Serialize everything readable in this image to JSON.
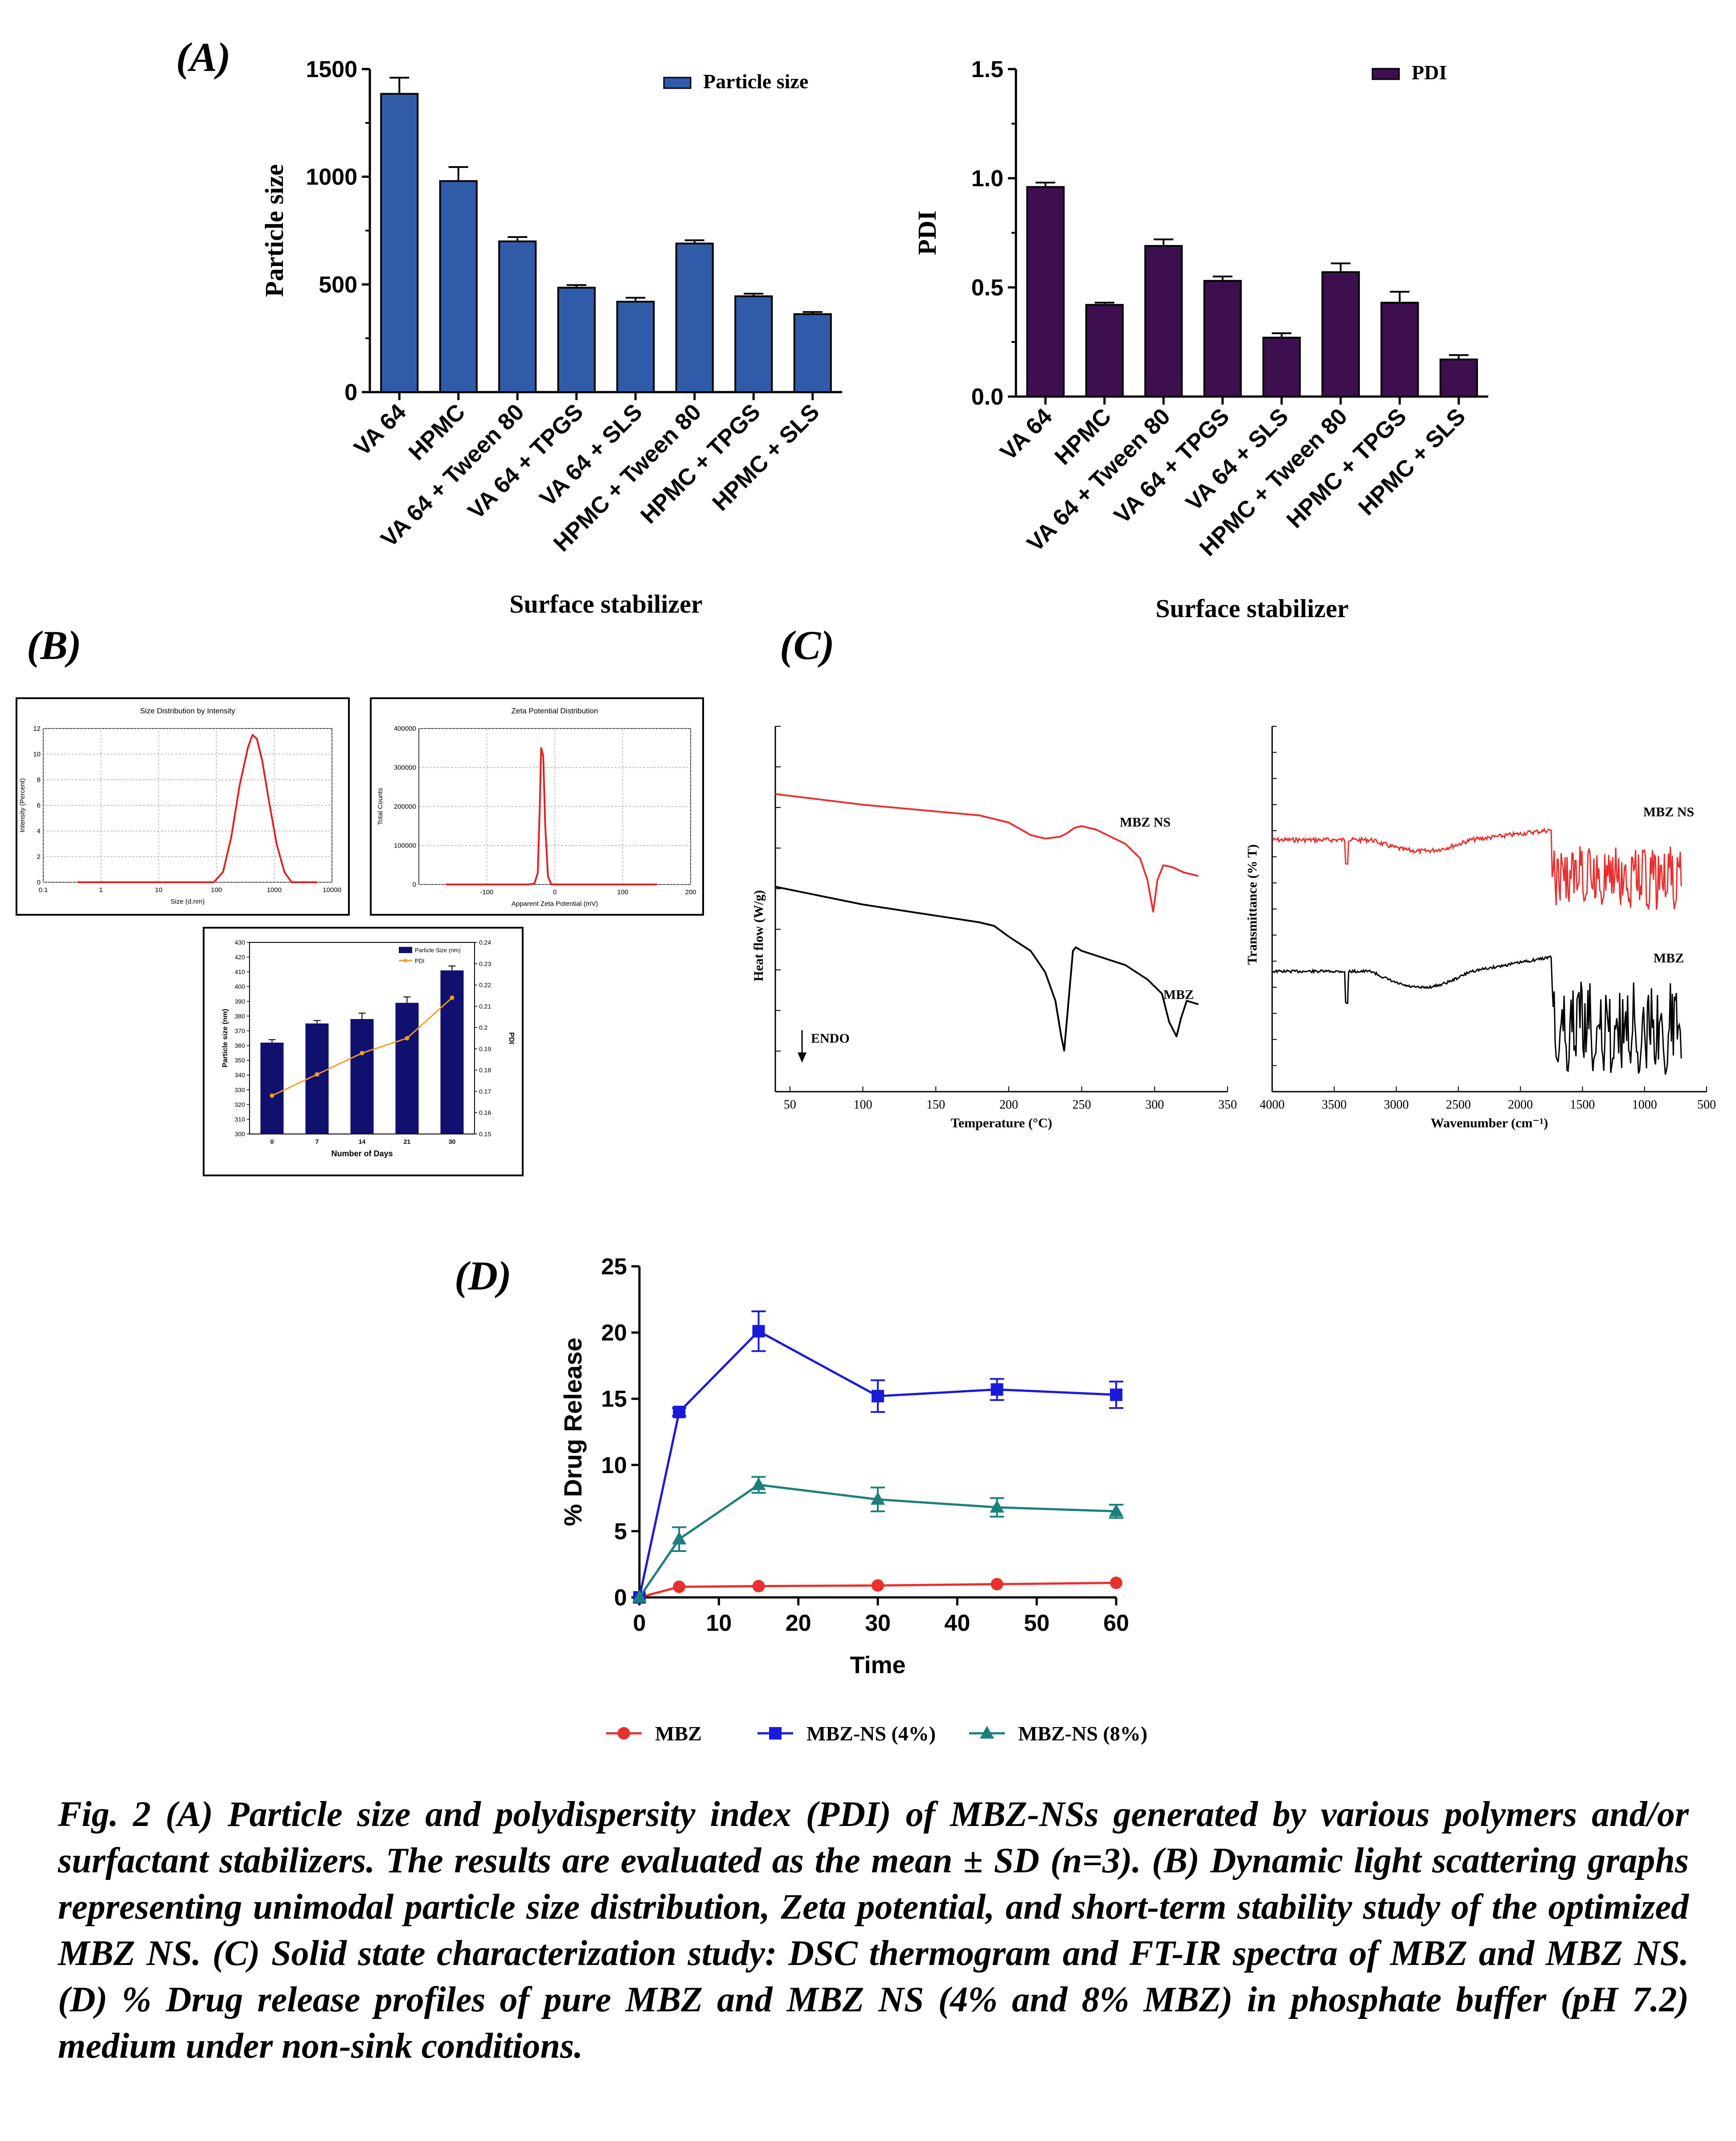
{
  "panels": {
    "A": "(A)",
    "B": "(B)",
    "C": "(C)",
    "D": "(D)"
  },
  "colors": {
    "particle_bar": "#2f5ba8",
    "pdi_bar": "#3d0f4f",
    "navy_bar": "#10106e",
    "orange_line": "#f39c1f",
    "red": "#e8312f",
    "blue": "#1a1adc",
    "teal": "#1d7f7a",
    "dls_red": "#e02020"
  },
  "chart_data": [
    {
      "id": "A1",
      "type": "bar",
      "categories": [
        "VA 64",
        "HPMC",
        "VA 64 + Tween 80",
        "VA 64 + TPGS",
        "VA 64 + SLS",
        "HPMC + Tween 80",
        "HPMC + TPGS",
        "HPMC + SLS"
      ],
      "series": [
        {
          "name": "Particle size",
          "values": [
            1385,
            980,
            700,
            485,
            420,
            690,
            445,
            362
          ],
          "errors": [
            75,
            65,
            20,
            12,
            18,
            15,
            12,
            10
          ]
        }
      ],
      "xlabel": "Surface stabilizer",
      "ylabel": "Particle size",
      "ylim": [
        0,
        1500
      ],
      "yticks": [
        "0",
        "500",
        "1000",
        "1500"
      ],
      "yticks_values": [
        0,
        500,
        1000,
        1500
      ],
      "legend_position": "top-right"
    },
    {
      "id": "A2",
      "type": "bar",
      "categories": [
        "VA 64",
        "HPMC",
        "VA 64 + Tween 80",
        "VA 64 + TPGS",
        "VA 64 + SLS",
        "HPMC + Tween 80",
        "HPMC + TPGS",
        "HPMC + SLS"
      ],
      "series": [
        {
          "name": "PDI",
          "values": [
            0.96,
            0.42,
            0.69,
            0.53,
            0.27,
            0.57,
            0.43,
            0.17
          ],
          "errors": [
            0.02,
            0.01,
            0.03,
            0.02,
            0.02,
            0.04,
            0.05,
            0.02
          ]
        }
      ],
      "xlabel": "Surface stabilizer",
      "ylabel": "PDI",
      "ylim": [
        0,
        1.5
      ],
      "yticks": [
        "0.0",
        "0.5",
        "1.0",
        "1.5"
      ],
      "yticks_values": [
        0,
        0.5,
        1.0,
        1.5
      ],
      "legend_position": "top-right"
    },
    {
      "id": "B1",
      "type": "line",
      "title": "Size Distribution by Intensity",
      "xlabel": "Size (d.nm)",
      "ylabel": "Intensity (Percent)",
      "x_scale": "log",
      "xlim": [
        0.1,
        10000
      ],
      "ylim": [
        0,
        12
      ],
      "xticks": [
        "0.1",
        "1",
        "10",
        "100",
        "1000",
        "10000"
      ],
      "xticks_values": [
        0.1,
        1,
        10,
        100,
        1000,
        10000
      ],
      "yticks": [
        "0",
        "2",
        "4",
        "6",
        "8",
        "10",
        "12"
      ],
      "yticks_values": [
        0,
        2,
        4,
        6,
        8,
        10,
        12
      ],
      "x": [
        0.4,
        90,
        130,
        180,
        250,
        350,
        420,
        500,
        620,
        800,
        1100,
        1500,
        2000,
        3000,
        5500
      ],
      "y": [
        0,
        0,
        0.8,
        3.5,
        7.5,
        10.5,
        11.5,
        11.2,
        9.5,
        6.5,
        3.0,
        0.8,
        0,
        0,
        0
      ],
      "grid": true
    },
    {
      "id": "B2",
      "type": "line",
      "title": "Zeta Potential Distribution",
      "xlabel": "Apparent Zeta Potential (mV)",
      "ylabel": "Total Counts",
      "xlim": [
        -200,
        200
      ],
      "ylim": [
        0,
        400000
      ],
      "xticks": [
        "-100",
        "0",
        "100",
        "200"
      ],
      "xticks_values": [
        -100,
        0,
        100,
        200
      ],
      "yticks": [
        "0",
        "100000",
        "200000",
        "300000",
        "400000"
      ],
      "yticks_values": [
        0,
        100000,
        200000,
        300000,
        400000
      ],
      "x": [
        -160,
        -40,
        -30,
        -25,
        -22,
        -20,
        -17,
        -14,
        -10,
        -5,
        10,
        150
      ],
      "y": [
        0,
        0,
        2000,
        30000,
        200000,
        350000,
        330000,
        150000,
        20000,
        0,
        0,
        0
      ],
      "grid": true
    },
    {
      "id": "B3",
      "type": "bar",
      "categories": [
        "0",
        "7",
        "14",
        "21",
        "30"
      ],
      "series": [
        {
          "name": "Particle Size (nm)",
          "values": [
            362,
            375,
            378,
            389,
            411
          ],
          "errors": [
            2,
            2,
            4,
            4,
            3
          ]
        },
        {
          "name": "PDI",
          "values": [
            0.168,
            0.178,
            0.188,
            0.195,
            0.214
          ],
          "axis": "right"
        }
      ],
      "xlabel": "Number of Days",
      "ylabel": "Particle size (nm)",
      "y2label": "PDI",
      "ylim": [
        300,
        430
      ],
      "y2lim": [
        0.15,
        0.24
      ],
      "yticks": [
        "300",
        "310",
        "320",
        "330",
        "340",
        "350",
        "360",
        "370",
        "380",
        "390",
        "400",
        "410",
        "420",
        "430"
      ],
      "yticks_values": [
        300,
        310,
        320,
        330,
        340,
        350,
        360,
        370,
        380,
        390,
        400,
        410,
        420,
        430
      ],
      "y2ticks": [
        "0.15",
        "0.16",
        "0.17",
        "0.18",
        "0.19",
        "0.2",
        "0.21",
        "0.22",
        "0.23",
        "0.24"
      ],
      "y2ticks_values": [
        0.15,
        0.16,
        0.17,
        0.18,
        0.19,
        0.2,
        0.21,
        0.22,
        0.23,
        0.24
      ],
      "legend_position": "top-right"
    },
    {
      "id": "C1",
      "type": "line",
      "xlabel": "Temperature (°C)",
      "ylabel": "Heat flow (W/g)",
      "xlim": [
        40,
        350
      ],
      "xticks": [
        "50",
        "100",
        "150",
        "200",
        "250",
        "300",
        "350"
      ],
      "xticks_values": [
        50,
        100,
        150,
        200,
        250,
        300,
        350
      ],
      "annotation": "ENDO",
      "series": [
        {
          "name": "MBZ NS",
          "x": [
            40,
            100,
            180,
            200,
            215,
            225,
            235,
            240,
            245,
            250,
            260,
            280,
            290,
            295,
            299,
            302,
            306,
            312,
            320,
            330
          ],
          "y": [
            7.6,
            7.3,
            7.0,
            6.8,
            6.45,
            6.35,
            6.4,
            6.5,
            6.65,
            6.7,
            6.6,
            6.2,
            5.8,
            5.2,
            4.3,
            5.2,
            5.6,
            5.55,
            5.4,
            5.3
          ]
        },
        {
          "name": "MBZ",
          "x": [
            40,
            100,
            180,
            190,
            200,
            215,
            225,
            232,
            236,
            238,
            241,
            244,
            246,
            250,
            265,
            280,
            295,
            305,
            310,
            315,
            318,
            322,
            330
          ],
          "y": [
            5.0,
            4.5,
            4.0,
            3.9,
            3.6,
            3.2,
            2.6,
            1.8,
            0.8,
            0.4,
            1.8,
            3.2,
            3.3,
            3.2,
            3.0,
            2.8,
            2.4,
            2.0,
            1.2,
            0.8,
            1.3,
            1.8,
            1.7
          ]
        }
      ]
    },
    {
      "id": "C2",
      "type": "line",
      "xlabel": "Wavenumber (cm⁻¹)",
      "ylabel": "Transmittance (% T)",
      "xlim": [
        4000,
        500
      ],
      "x_reversed": true,
      "xticks": [
        "4000",
        "3500",
        "3000",
        "2500",
        "2000",
        "1500",
        "1000",
        "500"
      ],
      "xticks_values": [
        4000,
        3500,
        3000,
        2500,
        2000,
        1500,
        1000,
        500
      ],
      "series": [
        {
          "name": "MBZ NS"
        },
        {
          "name": "MBZ"
        }
      ]
    },
    {
      "id": "D",
      "type": "line",
      "xlabel": "Time",
      "ylabel": "% Drug Release",
      "xlim": [
        0,
        60
      ],
      "ylim": [
        0,
        25
      ],
      "xticks": [
        "0",
        "10",
        "20",
        "30",
        "40",
        "50",
        "60"
      ],
      "xticks_values": [
        0,
        10,
        20,
        30,
        40,
        50,
        60
      ],
      "yticks": [
        "0",
        "5",
        "10",
        "15",
        "20",
        "25"
      ],
      "yticks_values": [
        0,
        5,
        10,
        15,
        20,
        25
      ],
      "x": [
        0,
        5,
        15,
        30,
        45,
        60
      ],
      "series": [
        {
          "name": "MBZ",
          "values": [
            0,
            0.8,
            0.85,
            0.9,
            1.0,
            1.1
          ],
          "errors": [
            0,
            0.1,
            0.1,
            0.1,
            0.1,
            0.1
          ],
          "marker": "circle"
        },
        {
          "name": "MBZ-NS (4%)",
          "values": [
            0,
            14,
            20.1,
            15.2,
            15.7,
            15.3
          ],
          "errors": [
            0,
            0.3,
            1.5,
            1.2,
            0.8,
            1.0
          ],
          "marker": "square"
        },
        {
          "name": "MBZ-NS (8%)",
          "values": [
            0,
            4.4,
            8.5,
            7.4,
            6.8,
            6.5
          ],
          "errors": [
            0,
            0.9,
            0.6,
            0.9,
            0.7,
            0.5
          ],
          "marker": "triangle"
        }
      ],
      "legend_position": "bottom"
    }
  ],
  "caption": "Fig. 2 (A) Particle size and polydispersity index (PDI) of MBZ-NSs generated by various polymers and/or surfactant stabilizers. The results are evaluated as the mean ± SD (n=3). (B) Dynamic light scattering graphs representing unimodal particle size distribution, Zeta potential, and short-term stability study of the optimized MBZ NS. (C) Solid state characterization study: DSC thermogram and FT-IR spectra of MBZ and MBZ NS. (D) % Drug release profiles of pure MBZ and MBZ NS (4% and 8% MBZ) in phosphate buffer (pH 7.2) medium under non-sink conditions."
}
